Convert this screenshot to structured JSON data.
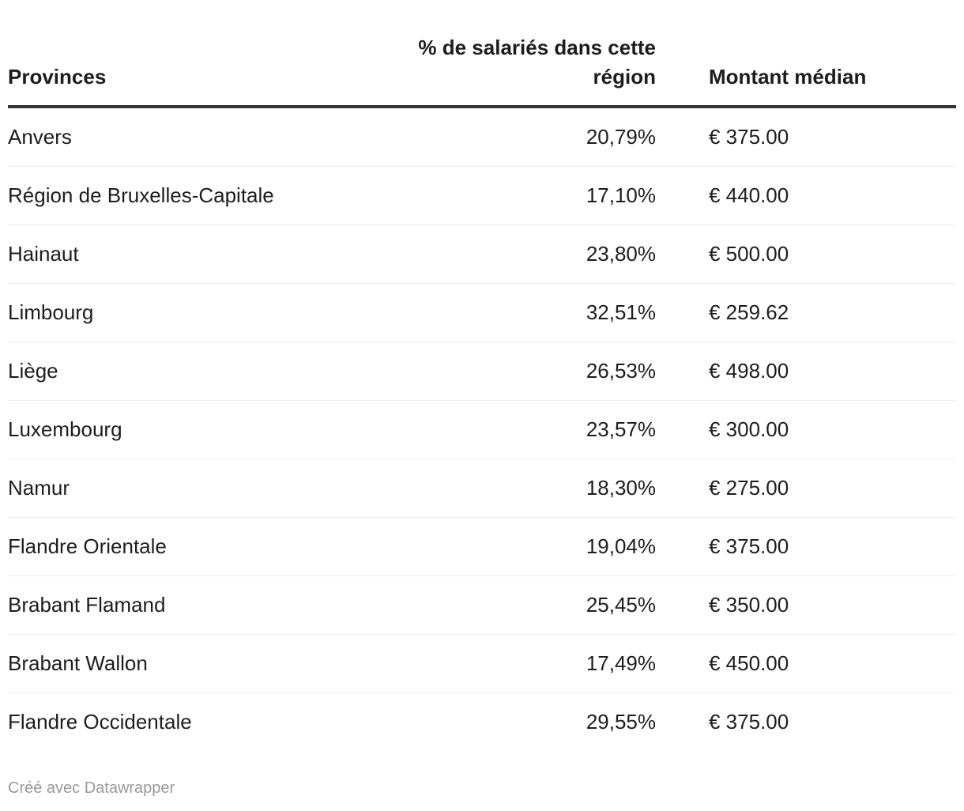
{
  "chart_data": {
    "type": "table",
    "columns": [
      "Provinces",
      "% de salariés dans cette région",
      "Montant médian"
    ],
    "rows": [
      [
        "Anvers",
        "20,79%",
        "€ 375.00"
      ],
      [
        "Région de Bruxelles-Capitale",
        "17,10%",
        "€ 440.00"
      ],
      [
        "Hainaut",
        "23,80%",
        "€ 500.00"
      ],
      [
        "Limbourg",
        "32,51%",
        "€ 259.62"
      ],
      [
        "Liège",
        "26,53%",
        "€ 498.00"
      ],
      [
        "Luxembourg",
        "23,57%",
        "€ 300.00"
      ],
      [
        "Namur",
        "18,30%",
        "€ 275.00"
      ],
      [
        "Flandre Orientale",
        "19,04%",
        "€ 375.00"
      ],
      [
        "Brabant Flamand",
        "25,45%",
        "€ 350.00"
      ],
      [
        "Brabant Wallon",
        "17,49%",
        "€ 450.00"
      ],
      [
        "Flandre Occidentale",
        "29,55%",
        "€ 375.00"
      ]
    ],
    "percent_values": [
      20.79,
      17.1,
      23.8,
      32.51,
      26.53,
      23.57,
      18.3,
      19.04,
      25.45,
      17.49,
      29.55
    ],
    "median_values_eur": [
      375.0,
      440.0,
      500.0,
      259.62,
      498.0,
      300.0,
      275.0,
      375.0,
      350.0,
      450.0,
      375.0
    ],
    "layout": {
      "percent_column_align": "right",
      "amount_column_align": "left",
      "grid": "horizontal-only"
    }
  },
  "footer": {
    "attribution": "Créé avec Datawrapper"
  },
  "colors": {
    "background": "#ffffff",
    "text": "#1d1d1d",
    "header_rule": "#333333",
    "row_separator": "#eeeeee",
    "attribution_text": "#999999"
  }
}
